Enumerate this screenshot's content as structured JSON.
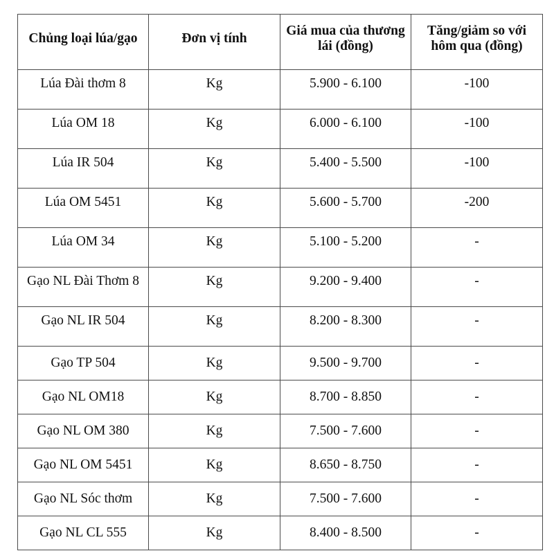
{
  "table": {
    "headers": [
      "Chủng loại lúa/gạo",
      "Đơn vị tính",
      "Giá mua của thương lái (đồng)",
      "Tăng/giảm so với hôm qua (đồng)"
    ],
    "rows": [
      [
        "Lúa Đài thơm 8",
        "Kg",
        "5.900 - 6.100",
        "-100"
      ],
      [
        "Lúa OM 18",
        "Kg",
        "6.000 - 6.100",
        "-100"
      ],
      [
        "Lúa IR 504",
        "Kg",
        "5.400 - 5.500",
        "-100"
      ],
      [
        "Lúa OM 5451",
        "Kg",
        "5.600 - 5.700",
        "-200"
      ],
      [
        "Lúa OM 34",
        "Kg",
        "5.100 - 5.200",
        "-"
      ],
      [
        "Gạo NL Đài Thơm 8",
        "Kg",
        "9.200 - 9.400",
        "-"
      ],
      [
        "Gạo NL IR 504",
        "Kg",
        "8.200 - 8.300",
        "-"
      ],
      [
        "Gạo TP 504",
        "Kg",
        "9.500 - 9.700",
        "-"
      ],
      [
        "Gạo NL OM18",
        "Kg",
        "8.700 - 8.850",
        "-"
      ],
      [
        "Gạo NL OM 380",
        "Kg",
        "7.500 - 7.600",
        "-"
      ],
      [
        "Gạo NL OM 5451",
        "Kg",
        "8.650 - 8.750",
        "-"
      ],
      [
        "Gạo NL Sóc thơm",
        "Kg",
        "7.500 - 7.600",
        "-"
      ],
      [
        "Gạo NL CL 555",
        "Kg",
        "8.400 - 8.500",
        "-"
      ]
    ]
  }
}
